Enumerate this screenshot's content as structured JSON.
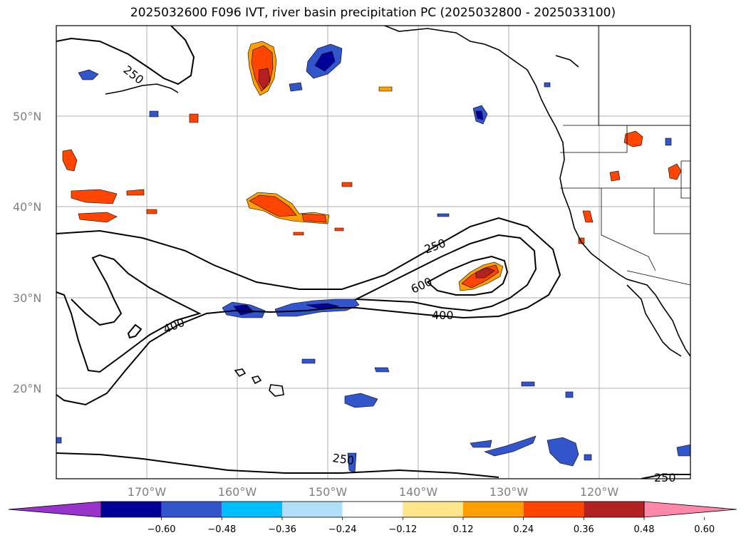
{
  "title": "2025032600 F096 IVT, river basin precipitation PC (2025032800 - 2025033100)",
  "lat_labels": [
    "50°N",
    "40°N",
    "30°N",
    "20°N"
  ],
  "lon_labels": [
    "170°W",
    "160°W",
    "150°W",
    "140°W",
    "130°W",
    "120°W"
  ],
  "contour_labels": [
    "250",
    "250",
    "600",
    "400",
    "400",
    "250",
    "250"
  ],
  "colorbar": {
    "ticks": [
      "−0.60",
      "−0.48",
      "−0.36",
      "−0.24",
      "−0.12",
      "0.12",
      "0.24",
      "0.36",
      "0.48",
      "0.60"
    ],
    "colors": [
      "#9933cc",
      "#000099",
      "#3355cc",
      "#00bfff",
      "#b0e0f8",
      "#ffffff",
      "#ffe68c",
      "#ffa000",
      "#ff4500",
      "#b22222",
      "#ff88aa"
    ]
  },
  "colors": {
    "blue_dark": "#000099",
    "blue_mid": "#3355cc",
    "blue_light": "#00bfff",
    "orange_red": "#ff4500",
    "dark_red": "#b22222",
    "orange": "#ffa000",
    "yellow": "#ffe68c",
    "gridline": "#b0b0b0",
    "coast": "#000000"
  }
}
